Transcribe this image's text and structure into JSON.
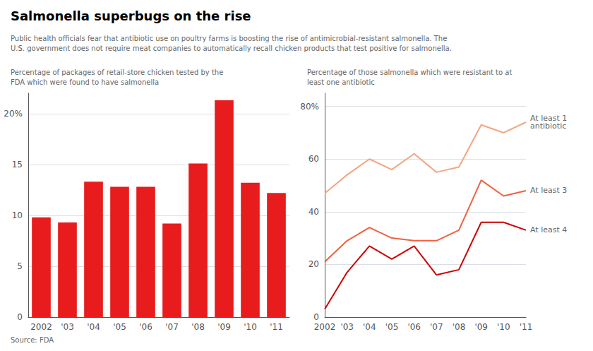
{
  "title": "Salmonella superbugs on the rise",
  "subtitle": "Public health officials fear that antibiotic use on poultry farms is boosting the rise of antimicrobial-resistant salmonella. The\nU.S. government does not require meat companies to automatically recall chicken products that test positive for salmonella.",
  "annotations": [
    "Source: FDA"
  ],
  "chart_data": [
    {
      "type": "bar",
      "subtitle": "Percentage of packages of retail-store chicken tested by the\nFDA which were found to have salmonella",
      "categories": [
        "2002",
        "'03",
        "'04",
        "'05",
        "'06",
        "'07",
        "'08",
        "'09",
        "'10",
        "'11"
      ],
      "values": [
        9.8,
        9.3,
        13.3,
        12.8,
        12.8,
        9.2,
        15.1,
        21.3,
        13.2,
        12.2
      ],
      "color": "#e81c1c",
      "ylim": [
        0,
        22
      ],
      "yticks": [
        0,
        5,
        10,
        15,
        {
          "value": 20,
          "label": "20%"
        }
      ],
      "grid": true
    },
    {
      "type": "line",
      "subtitle": "Percentage of those salmonella which were resistant to at\nleast one antibiotic",
      "categories": [
        "2002",
        "'03",
        "'04",
        "'05",
        "'06",
        "'07",
        "'08",
        "'09",
        "'10",
        "'11"
      ],
      "series": [
        {
          "name": "At least 1\nantibiotic",
          "color": "#f4a580",
          "values": [
            47,
            54,
            60,
            56,
            62,
            55,
            57,
            73,
            70,
            74
          ]
        },
        {
          "name": "At least 3",
          "color": "#f06040",
          "values": [
            21,
            29,
            34,
            30,
            29,
            29,
            33,
            52,
            46,
            48
          ]
        },
        {
          "name": "At least 4",
          "color": "#cc0000",
          "values": [
            3,
            17,
            27,
            22,
            27,
            16,
            18,
            36,
            36,
            33
          ]
        }
      ],
      "ylim": [
        0,
        85
      ],
      "yticks": [
        0,
        20,
        40,
        60,
        {
          "value": 80,
          "label": "80%"
        }
      ],
      "grid": true
    }
  ]
}
